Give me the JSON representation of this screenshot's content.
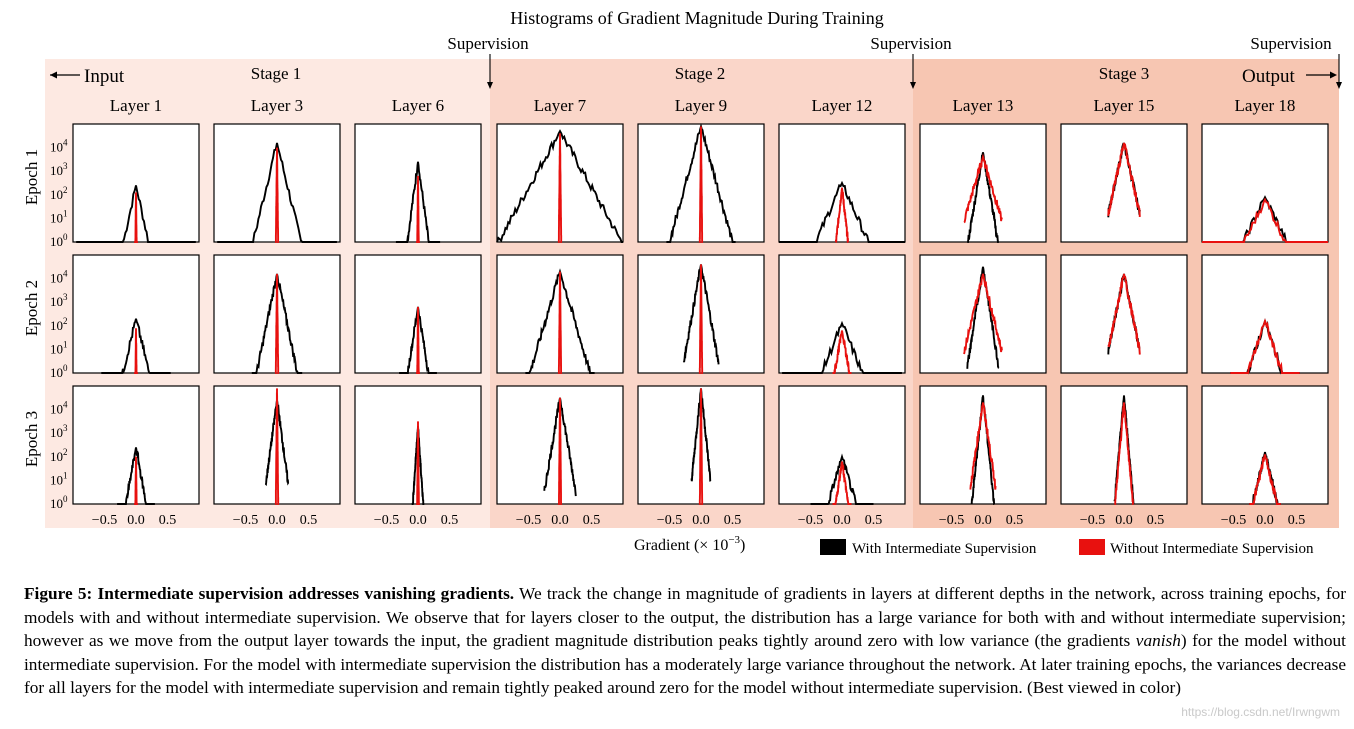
{
  "figure": {
    "title": "Histograms of Gradient Magnitude During Training",
    "supervision_label": "Supervision",
    "input_label": "Input",
    "output_label": "Output",
    "stages": [
      "Stage 1",
      "Stage 2",
      "Stage 3"
    ],
    "xlabel": "Gradient (× 10",
    "xlabel_exp": "−3",
    "xlabel_close": ")",
    "colors": {
      "stage1_bg": "#fde9e2",
      "stage2_bg": "#fad6c9",
      "stage3_bg": "#f7c6b2",
      "with_supervision": "#000000",
      "without_supervision": "#e8110f"
    }
  },
  "chart_data": {
    "type": "line",
    "title": "Histograms of Gradient Magnitude During Training",
    "layers": [
      "Layer 1",
      "Layer 3",
      "Layer 6",
      "Layer 7",
      "Layer 9",
      "Layer 12",
      "Layer 13",
      "Layer 15",
      "Layer 18"
    ],
    "epochs": [
      "Epoch 1",
      "Epoch 2",
      "Epoch 3"
    ],
    "x_ticks": [
      "−0.5",
      "0.0",
      "0.5"
    ],
    "x_tick_values": [
      -0.5,
      0.0,
      0.5
    ],
    "xlim": [
      -1,
      1
    ],
    "y_scale": "log",
    "y_ticks": [
      "10^0",
      "10^1",
      "10^2",
      "10^3",
      "10^4"
    ],
    "y_tick_values": [
      1,
      10,
      100,
      1000,
      10000
    ],
    "ylim": [
      1,
      100000
    ],
    "xlabel": "Gradient (× 10^−3)",
    "series": [
      {
        "name": "With Intermediate Supervision",
        "color": "#000000"
      },
      {
        "name": "Without Intermediate Supervision",
        "color": "#e8110f"
      }
    ],
    "grid": false,
    "legend_position": "bottom-right"
  },
  "caption": {
    "lead": "Figure 5: Intermediate supervision addresses vanishing gradients.",
    "text1": " We track the change in magnitude of gradients in layers at different depths in the network, across training epochs, for models with and without intermediate supervision. We observe that for layers closer to the output, the distribution has a large variance for both with and without intermediate supervision; however as we move from the output layer towards the input, the gradient magnitude distribution peaks tightly around zero with low variance (the gradients ",
    "em": "vanish",
    "text2": ") for the model without intermediate supervision. For the model with intermediate supervision the distribution has a moderately large variance throughout the network. At later training epochs, the variances decrease for all layers for the model with intermediate supervision and remain tightly peaked around zero for the model without intermediate supervision. (Best viewed in color)"
  },
  "watermark": "https://blog.csdn.net/Irwngwm"
}
